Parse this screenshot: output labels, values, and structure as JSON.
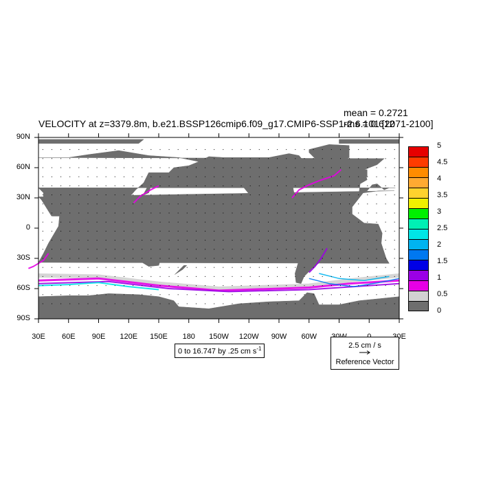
{
  "figure": {
    "title": "VELOCITY at z=3379.8m, b.e21.BSSP126cmip6.f09_g17.CMIP6-SSP1-2.6.101 [2071-2100]",
    "mean_text": "mean = 0.2721",
    "rms_text": "rms = 0.612",
    "contour_info": "0 to 16.747 by .25 cm s",
    "contour_info_sup": "-1",
    "ref_vector_speed": "2.5 cm / s",
    "ref_vector_label": "Reference Vector"
  },
  "colors": {
    "land": "#6e6e6e",
    "ocean": "#ffffff",
    "scale": [
      "#6e6e6e",
      "#d2d2d2",
      "#e600e6",
      "#9b00e6",
      "#0000e6",
      "#0078f0",
      "#00b4f0",
      "#00e6e6",
      "#00f0b4",
      "#00f000",
      "#f0f000",
      "#ffd22d",
      "#ffaa32",
      "#ff8c00",
      "#ff3c00",
      "#e60000",
      "#c80000"
    ]
  },
  "chart_data": {
    "type": "map",
    "projection": "cylindrical-equidistant",
    "variable": "VELOCITY",
    "units": "cm s-1",
    "x_range_lon": [
      30,
      390
    ],
    "y_range_lat": [
      -90,
      90
    ],
    "x_tick_labels": [
      "30E",
      "60E",
      "90E",
      "120E",
      "150E",
      "180",
      "150W",
      "120W",
      "90W",
      "60W",
      "30W",
      "0",
      "30E"
    ],
    "x_tick_lons": [
      30,
      60,
      90,
      120,
      150,
      180,
      210,
      240,
      270,
      300,
      330,
      360,
      390
    ],
    "y_tick_labels": [
      "90N",
      "60N",
      "30N",
      "0",
      "30S",
      "60S",
      "90S"
    ],
    "y_tick_lats": [
      90,
      60,
      30,
      0,
      -30,
      -60,
      -90
    ],
    "colorbar_levels": [
      0,
      0.5,
      1,
      1.5,
      2,
      2.5,
      3,
      3.5,
      4,
      4.5,
      5
    ],
    "colorbar_labels": [
      "0",
      "0.5",
      "1",
      "1.5",
      "2",
      "2.5",
      "3",
      "3.5",
      "4",
      "4.5",
      "5"
    ],
    "colorbar_bins": 16,
    "contour_min": 0,
    "contour_max": 16.747,
    "contour_interval": 0.25,
    "mean": 0.2721,
    "rms": 0.612,
    "reference_vector_cm_s": 2.5
  }
}
